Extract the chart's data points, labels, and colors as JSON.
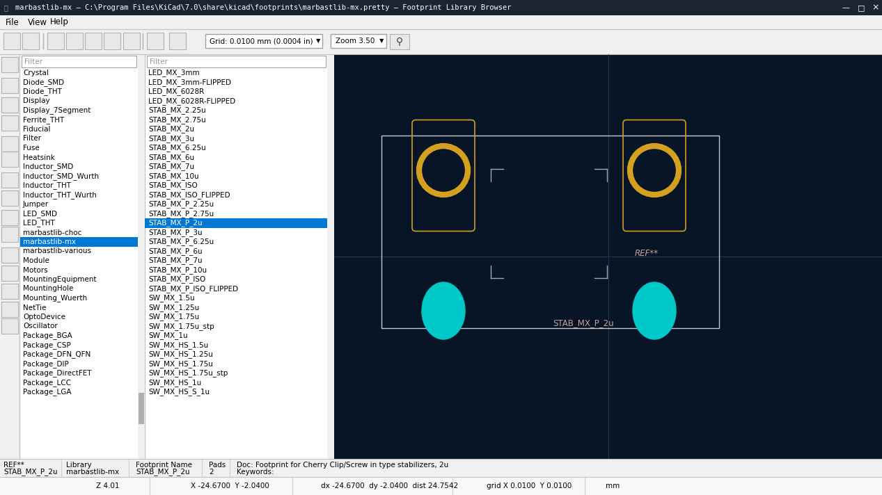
{
  "title": "marbastlib-mx — C:\\Program Files\\KiCad\\7.0\\share\\kicad\\footprints\\marbastlib-mx.pretty — Footprint Library Browser",
  "bg_color": "#081526",
  "outline_color": "#d4a020",
  "pad_color": "#00c8c8",
  "courtyard_color": "#c8c8c8",
  "ref_color": "#c0a0a0",
  "left_list": [
    "Crystal",
    "Diode_SMD",
    "Diode_THT",
    "Display",
    "Display_7Segment",
    "Ferrite_THT",
    "Fiducial",
    "Filter",
    "Fuse",
    "Heatsink",
    "Inductor_SMD",
    "Inductor_SMD_Wurth",
    "Inductor_THT",
    "Inductor_THT_Wurth",
    "Jumper",
    "LED_SMD",
    "LED_THT",
    "marbastlib-choc",
    "marbastlib-mx",
    "marbastlib-various",
    "Module",
    "Motors",
    "MountingEquipment",
    "MountingHole",
    "Mounting_Wuerth",
    "NetTie",
    "OptoDevice",
    "Oscillator",
    "Package_BGA",
    "Package_CSP",
    "Package_DFN_QFN",
    "Package_DIP",
    "Package_DirectFET",
    "Package_LCC",
    "Package_LGA"
  ],
  "right_list": [
    "LED_MX_3mm",
    "LED_MX_3mm-FLIPPED",
    "LED_MX_6028R",
    "LED_MX_6028R-FLIPPED",
    "STAB_MX_2.25u",
    "STAB_MX_2.75u",
    "STAB_MX_2u",
    "STAB_MX_3u",
    "STAB_MX_6.25u",
    "STAB_MX_6u",
    "STAB_MX_7u",
    "STAB_MX_10u",
    "STAB_MX_ISO",
    "STAB_MX_ISO_FLIPPED",
    "STAB_MX_P_2.25u",
    "STAB_MX_P_2.75u",
    "STAB_MX_P_2u",
    "STAB_MX_P_3u",
    "STAB_MX_P_6.25u",
    "STAB_MX_P_6u",
    "STAB_MX_P_7u",
    "STAB_MX_P_10u",
    "STAB_MX_P_ISO",
    "STAB_MX_P_ISO_FLIPPED",
    "SW_MX_1.5u",
    "SW_MX_1.25u",
    "SW_MX_1.75u",
    "SW_MX_1.75u_stp",
    "SW_MX_1u",
    "SW_MX_HS_1.5u",
    "SW_MX_HS_1.25u",
    "SW_MX_HS_1.75u",
    "SW_MX_HS_1.75u_stp",
    "SW_MX_HS_1u",
    "SW_MX_HS_S_1u"
  ],
  "selected_left": "marbastlib-mx",
  "selected_right": "STAB_MX_P_2u",
  "status_ref": "REF**",
  "status_lib": "marbastlib-mx",
  "status_fp": "STAB_MX_P_2u",
  "status_pads": "2",
  "status_doc": "Doc: Footprint for Cherry Clip/Screw in type stabilizers, 2u",
  "status_kw": "Keywords:",
  "coord_z": "Z 4.01",
  "coord_xy": "X -24.6700  Y -2.0400",
  "coord_dx": "dx -24.6700  dy -2.0400  dist 24.7542",
  "coord_grid": "grid X 0.0100  Y 0.0100",
  "coord_unit": "mm",
  "grid_text": "Grid: 0.0100 mm (0.0004 in)",
  "zoom_text": "Zoom 3.50"
}
